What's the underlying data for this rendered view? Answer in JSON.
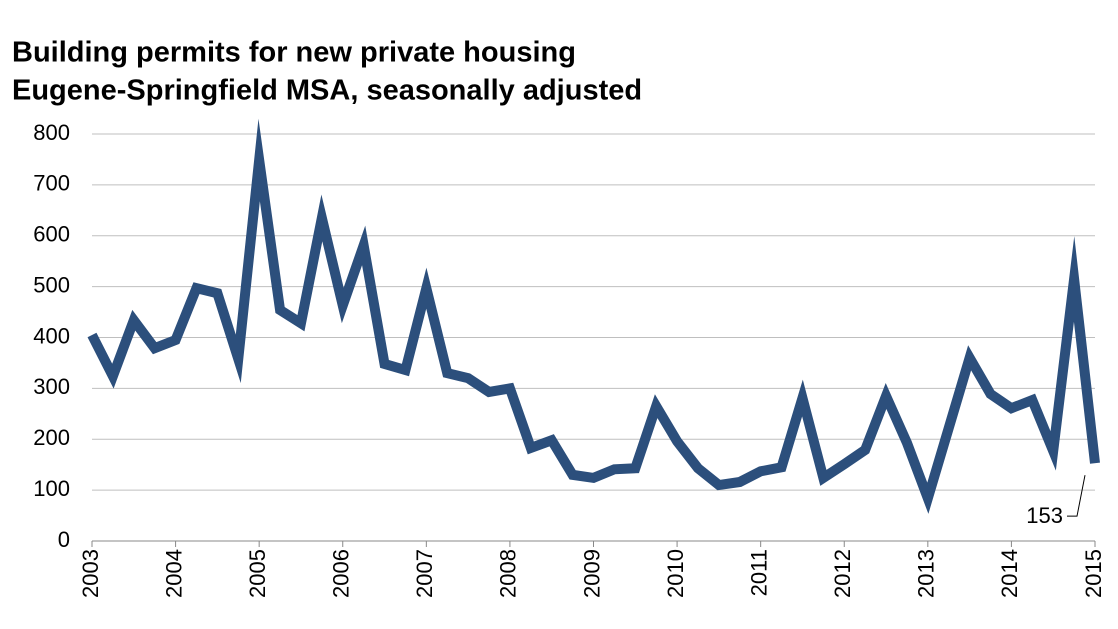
{
  "chart_data": {
    "type": "line",
    "title": "Building permits for new private housing",
    "subtitle": "Eugene-Springfield MSA, seasonally adjusted",
    "x": [
      2003,
      2003.25,
      2003.5,
      2003.75,
      2004,
      2004.25,
      2004.5,
      2004.75,
      2005,
      2005.25,
      2005.5,
      2005.75,
      2006,
      2006.25,
      2006.5,
      2006.75,
      2007,
      2007.25,
      2007.5,
      2007.75,
      2008,
      2008.25,
      2008.5,
      2008.75,
      2009,
      2009.25,
      2009.5,
      2009.75,
      2010,
      2010.25,
      2010.5,
      2010.75,
      2011,
      2011.25,
      2011.5,
      2011.75,
      2012,
      2012.25,
      2012.5,
      2012.75,
      2013,
      2013.25,
      2013.5,
      2013.75,
      2014,
      2014.25,
      2014.5,
      2014.75,
      2015
    ],
    "series": [
      {
        "color": "#2c4f7c",
        "values": [
          405,
          324,
          434,
          379,
          395,
          497,
          487,
          358,
          749,
          454,
          428,
          635,
          463,
          581,
          348,
          336,
          497,
          330,
          320,
          293,
          300,
          183,
          198,
          130,
          124,
          141,
          143,
          265,
          196,
          143,
          110,
          116,
          137,
          145,
          281,
          124,
          151,
          179,
          285,
          193,
          84,
          222,
          360,
          289,
          261,
          277,
          177,
          515,
          153
        ]
      }
    ],
    "xlim": [
      2003,
      2015
    ],
    "xticks": [
      2003,
      2004,
      2005,
      2006,
      2007,
      2008,
      2009,
      2010,
      2011,
      2012,
      2013,
      2014,
      2015
    ],
    "ylim": [
      0,
      800
    ],
    "yticks": [
      0,
      100,
      200,
      300,
      400,
      500,
      600,
      700,
      800
    ],
    "grid": true
  }
}
